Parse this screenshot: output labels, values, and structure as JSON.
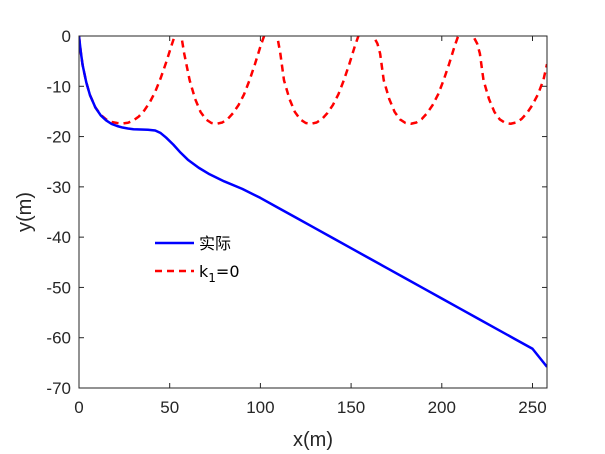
{
  "chart_data": {
    "type": "line",
    "title": "",
    "xlabel": "x(m)",
    "ylabel": "y(m)",
    "xlim": [
      0,
      258
    ],
    "ylim": [
      -70,
      0
    ],
    "xticks": [
      0,
      50,
      100,
      150,
      200,
      250
    ],
    "yticks": [
      0,
      -10,
      -20,
      -30,
      -40,
      -50,
      -60,
      -70
    ],
    "xtick_labels": [
      "0",
      "50",
      "100",
      "150",
      "200",
      "250"
    ],
    "ytick_labels": [
      "0",
      "-10",
      "-20",
      "-30",
      "-40",
      "-50",
      "-60",
      "-70"
    ],
    "grid": false,
    "legend_location": "center-left",
    "series": [
      {
        "name": "实际",
        "color": "#0000ff",
        "style": "solid",
        "x": [
          0,
          1,
          2,
          4,
          6,
          9,
          12,
          15,
          18,
          21,
          24,
          27,
          30,
          34,
          38,
          42,
          45,
          48,
          52,
          56,
          60,
          66,
          72,
          80,
          90,
          100,
          110,
          120,
          130,
          140,
          150,
          160,
          170,
          180,
          190,
          200,
          210,
          220,
          230,
          240,
          250,
          258
        ],
        "y": [
          0,
          -3.2,
          -5.8,
          -9.2,
          -11.7,
          -14.2,
          -15.8,
          -16.8,
          -17.5,
          -17.9,
          -18.2,
          -18.4,
          -18.55,
          -18.6,
          -18.65,
          -18.8,
          -19.3,
          -20.2,
          -21.6,
          -23.2,
          -24.6,
          -26.2,
          -27.5,
          -28.9,
          -30.4,
          -32.2,
          -34.2,
          -36.2,
          -38.2,
          -40.2,
          -42.2,
          -44.2,
          -46.2,
          -48.2,
          -50.2,
          -52.2,
          -54.2,
          -56.2,
          -58.2,
          -60.2,
          -62.2,
          -65.8
        ]
      },
      {
        "name": "k1=0",
        "color": "#ff0000",
        "style": "dashed",
        "x": [
          0,
          1,
          2,
          4,
          6,
          9,
          12,
          15,
          18,
          21,
          24,
          27,
          30,
          33,
          36,
          39,
          42,
          45,
          48,
          51,
          53,
          54.5,
          56,
          58,
          61,
          64,
          67,
          70,
          73,
          76,
          79,
          82,
          85,
          88,
          91,
          94,
          97,
          100,
          103,
          106,
          108,
          109.5,
          111,
          113,
          116,
          119,
          122,
          125,
          128,
          131,
          134,
          137,
          140,
          143,
          146,
          149,
          152,
          155,
          158,
          161,
          163,
          164.5,
          166,
          168,
          171,
          174,
          177,
          180,
          183,
          186,
          189,
          192,
          195,
          198,
          201,
          204,
          207,
          210,
          213,
          216,
          218,
          219.5,
          221,
          223,
          226,
          229,
          232,
          235,
          238,
          241,
          244,
          247,
          250,
          253,
          256,
          258
        ],
        "y": [
          0,
          -3.2,
          -5.8,
          -9.2,
          -11.7,
          -14.2,
          -15.7,
          -16.6,
          -17.1,
          -17.3,
          -17.4,
          -17.25,
          -16.8,
          -16.0,
          -14.8,
          -13.2,
          -11.1,
          -8.4,
          -5.3,
          -1.9,
          0.3,
          2.0,
          0.9,
          -3.5,
          -8.8,
          -12.5,
          -15.1,
          -16.6,
          -17.3,
          -17.45,
          -17.2,
          -16.5,
          -15.3,
          -13.7,
          -11.6,
          -8.8,
          -5.6,
          -2.1,
          1.0,
          2.0,
          0.9,
          -0.5,
          -3.5,
          -8.8,
          -12.5,
          -15.1,
          -16.6,
          -17.3,
          -17.45,
          -17.2,
          -16.5,
          -15.3,
          -13.7,
          -11.6,
          -8.8,
          -5.6,
          -2.1,
          1.0,
          2.0,
          0.9,
          -0.5,
          -1.5,
          -3.5,
          -8.8,
          -12.5,
          -15.1,
          -16.6,
          -17.3,
          -17.45,
          -17.2,
          -16.5,
          -15.3,
          -13.7,
          -11.6,
          -8.8,
          -5.6,
          -2.1,
          1.0,
          2.0,
          0.9,
          -0.5,
          -1.5,
          -3.5,
          -8.8,
          -12.5,
          -15.1,
          -16.6,
          -17.3,
          -17.45,
          -17.2,
          -16.5,
          -15.3,
          -13.7,
          -11.6,
          -8.8,
          -5.6
        ]
      }
    ],
    "legend": [
      {
        "label": "实际",
        "color": "#0000ff",
        "style": "solid"
      },
      {
        "label_base": "k",
        "label_sub": "1",
        "label_rest": "=0",
        "color": "#ff0000",
        "style": "dashed"
      }
    ]
  }
}
